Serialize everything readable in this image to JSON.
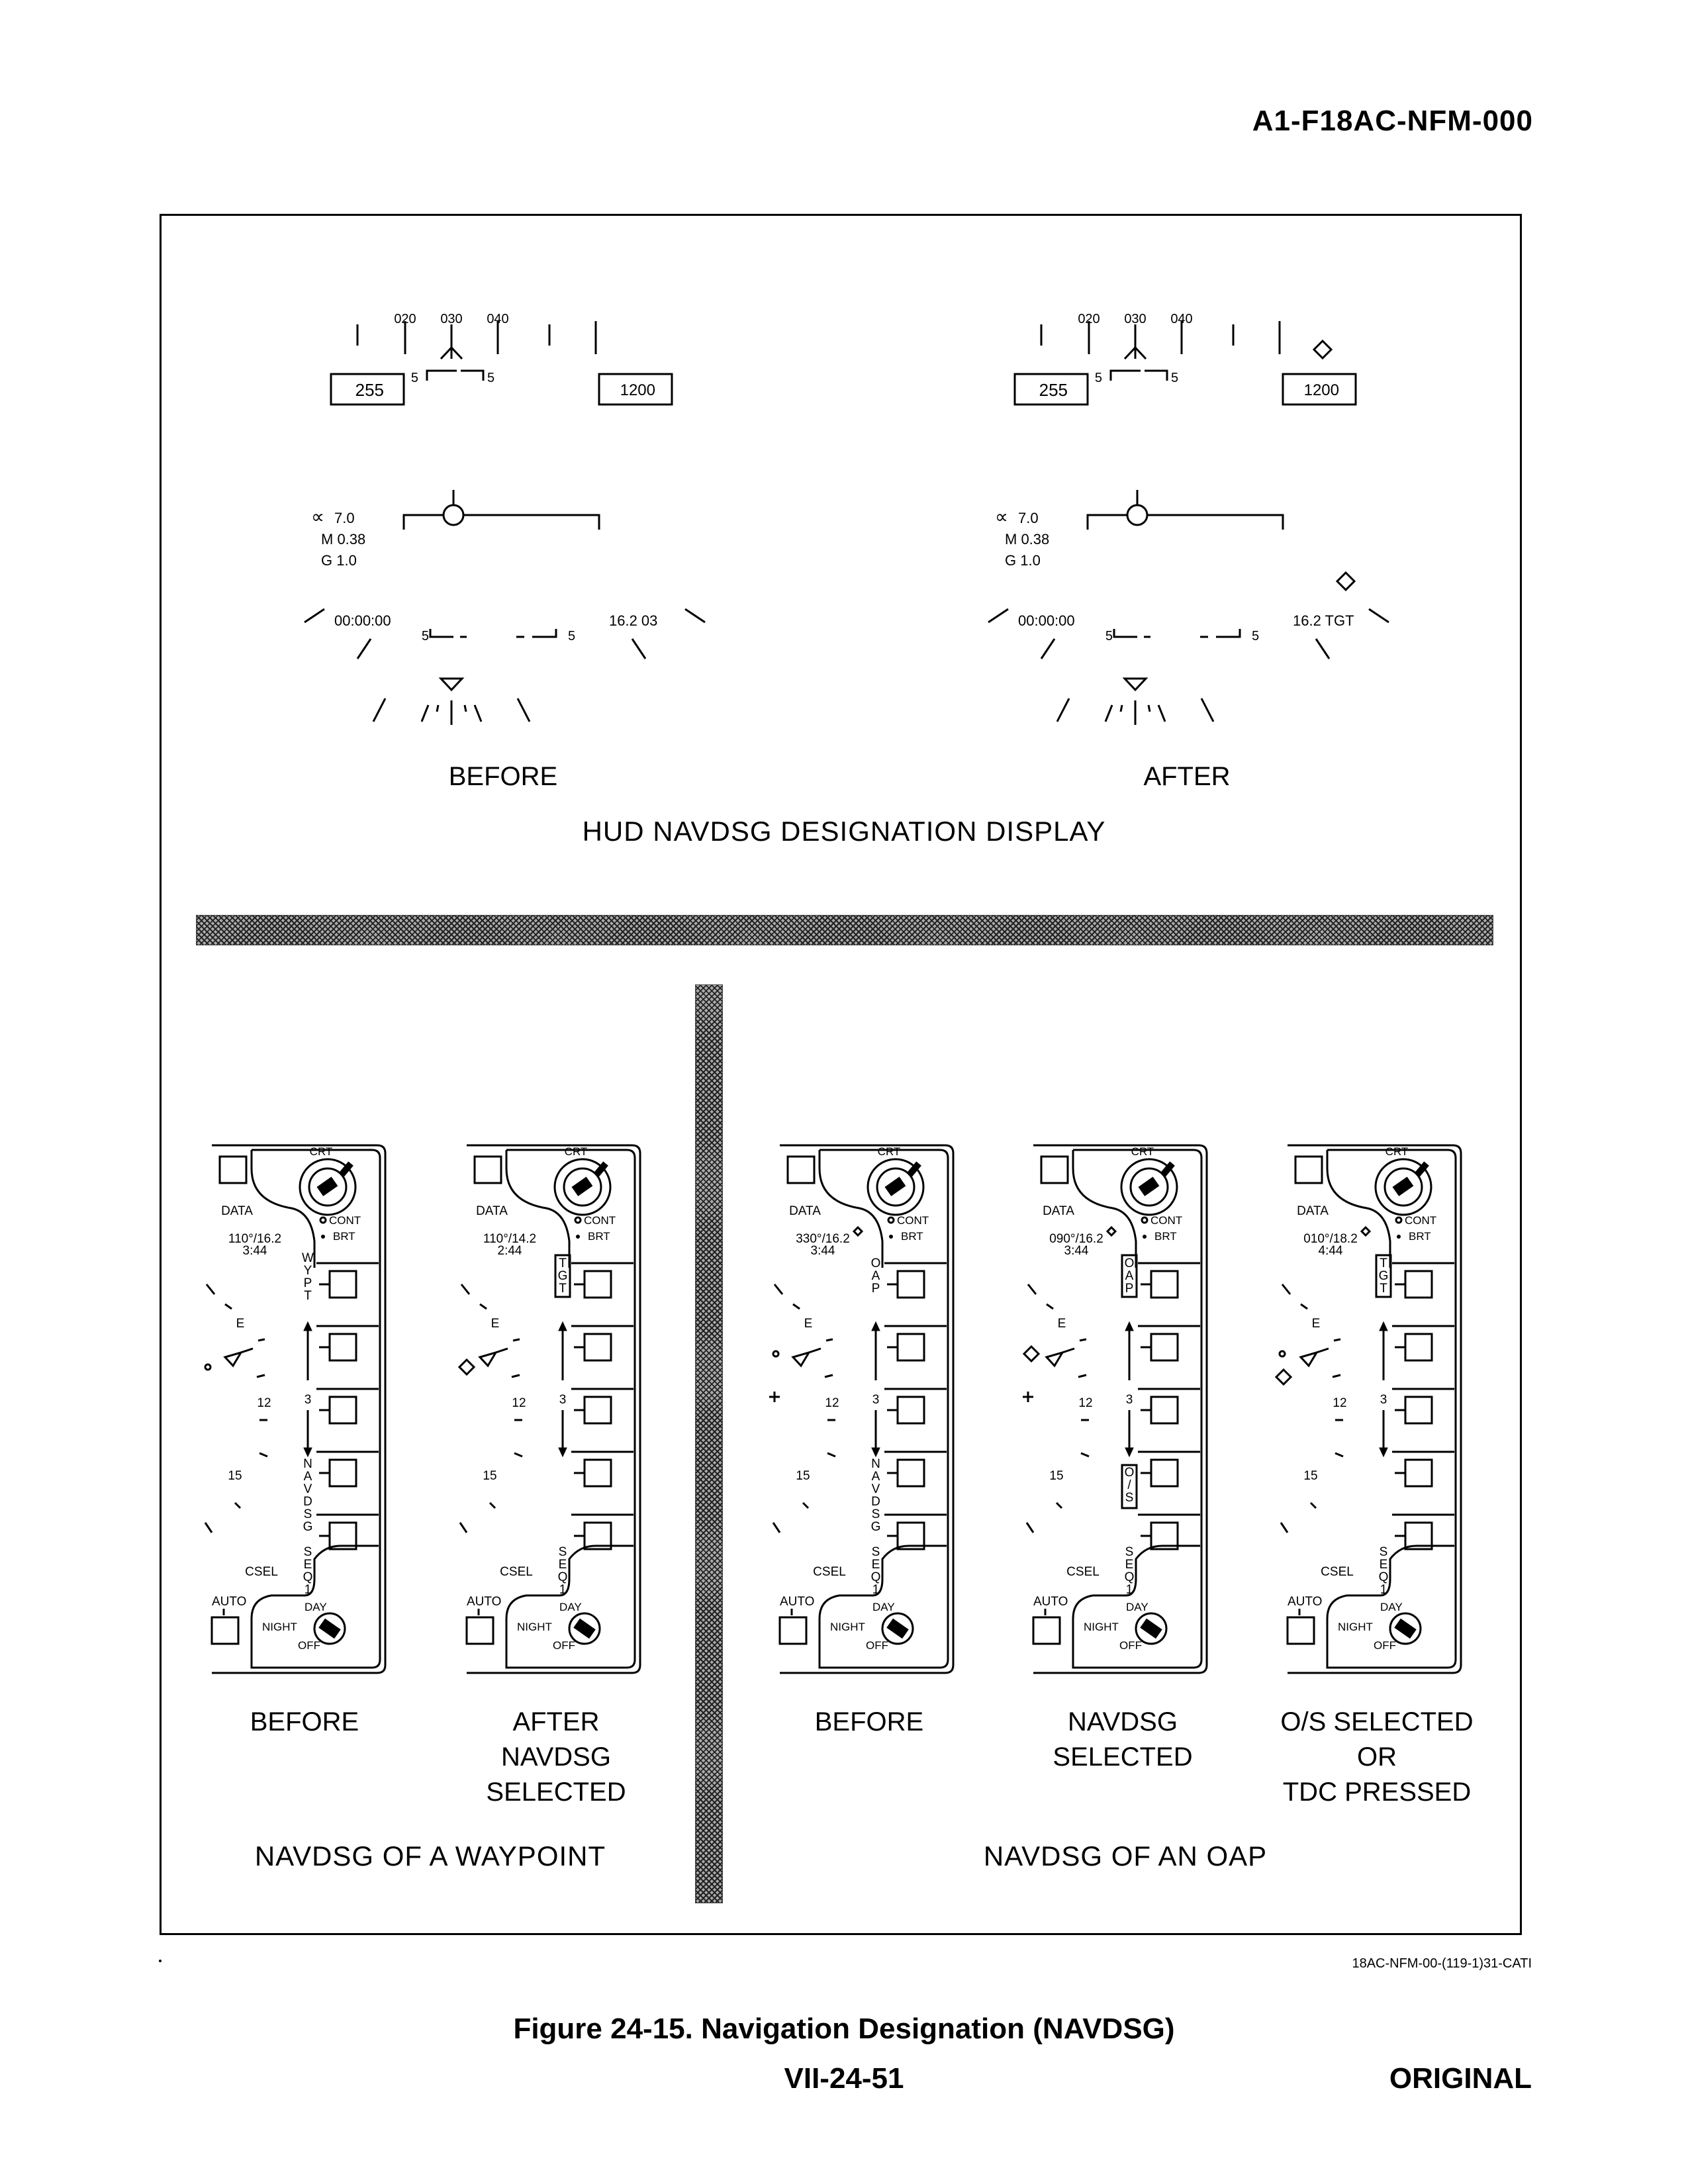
{
  "header": {
    "doc_id": "A1-F18AC-NFM-000"
  },
  "hud_section": {
    "title": "HUD NAVDSG DESIGNATION DISPLAY",
    "displays": [
      {
        "label": "BEFORE",
        "heading_ticks": [
          "020",
          "030",
          "040"
        ],
        "airspeed": "255",
        "altitude": "1200",
        "pitch_left": "5",
        "pitch_right": "5",
        "aoa": "7.0",
        "mach": "M 0.38",
        "g": "G 1.0",
        "elapsed": "00:00:00",
        "range_readout": "16.2 03",
        "lower_left": "5",
        "lower_right": "5"
      },
      {
        "label": "AFTER",
        "heading_ticks": [
          "020",
          "030",
          "040"
        ],
        "airspeed": "255",
        "altitude": "1200",
        "pitch_left": "5",
        "pitch_right": "5",
        "aoa": "7.0",
        "mach": "M 0.38",
        "g": "G 1.0",
        "elapsed": "00:00:00",
        "range_readout": "16.2 TGT",
        "lower_left": "5",
        "lower_right": "5"
      }
    ]
  },
  "ddi_section": {
    "groups": [
      {
        "title": "NAVDSG OF A WAYPOINT"
      },
      {
        "title": "NAVDSG OF AN OAP"
      }
    ],
    "common": {
      "crt": "CRT",
      "data": "DATA",
      "cont": "CONT",
      "brt": "BRT",
      "csel": "CSEL",
      "auto": "AUTO",
      "day": "DAY",
      "night": "NIGHT",
      "off": "OFF",
      "compass_e": "E",
      "compass_12": "12",
      "compass_15": "15",
      "scale": "3",
      "seq": "SEQ1"
    },
    "displays": [
      {
        "label": "BEFORE",
        "bearing": "110°/16.2",
        "time": "3:44",
        "top_button": "WYPT",
        "bottom_button": "NAVDSG"
      },
      {
        "label": "AFTER\nNAVDSG\nSELECTED",
        "bearing": "110°/14.2",
        "time": "2:44",
        "top_button": "TGT",
        "bottom_button": ""
      },
      {
        "label": "BEFORE",
        "bearing": "330°/16.2",
        "time": "3:44",
        "top_button": "OAP",
        "bottom_button": "NAVDSG"
      },
      {
        "label": "NAVDSG\nSELECTED",
        "bearing": "090°/16.2",
        "time": "3:44",
        "top_button": "OAP",
        "bottom_button": "O/S"
      },
      {
        "label": "O/S SELECTED\nOR\nTDC PRESSED",
        "bearing": "010°/18.2",
        "time": "4:44",
        "top_button": "TGT",
        "bottom_button": ""
      }
    ]
  },
  "footer": {
    "figure_id": "18AC-NFM-00-(119-1)31-CATI",
    "caption": "Figure 24-15. Navigation Designation (NAVDSG)",
    "page_number": "VII-24-51",
    "status": "ORIGINAL"
  }
}
